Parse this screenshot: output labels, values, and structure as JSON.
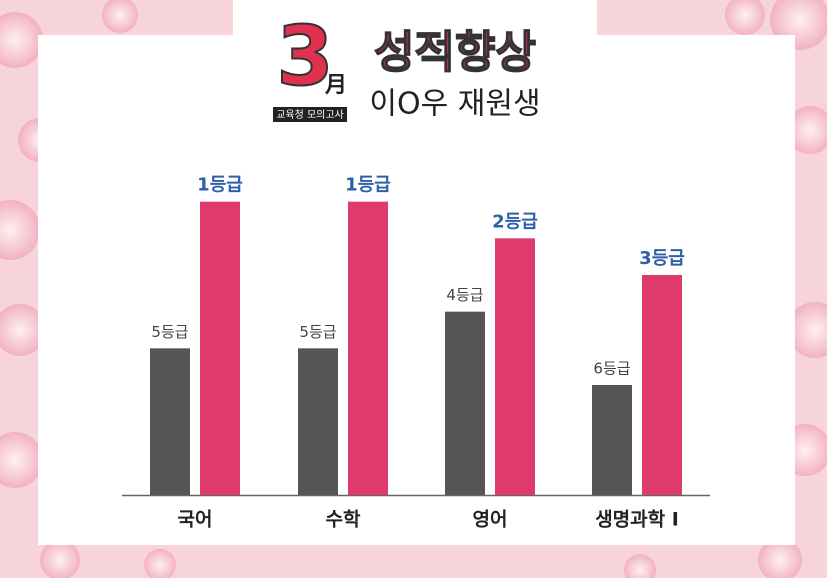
{
  "chart_data": {
    "type": "bar",
    "title": "성적향상",
    "subtitle": "이O우 재원생",
    "annotations": [
      "3",
      "月",
      "교육청 모의고사"
    ],
    "categories": [
      "국어",
      "수학",
      "영어",
      "생명과학 I"
    ],
    "series": [
      {
        "color": "#555555",
        "values": [
          5,
          5,
          4,
          6
        ],
        "value_labels": [
          "5등급",
          "5등급",
          "4등급",
          "6등급"
        ]
      },
      {
        "color": "#de3a6b",
        "values": [
          1,
          1,
          2,
          3
        ],
        "value_labels": [
          "1등급",
          "1등급",
          "2등급",
          "3등급"
        ]
      }
    ],
    "ylim": [
      9,
      0
    ]
  }
}
